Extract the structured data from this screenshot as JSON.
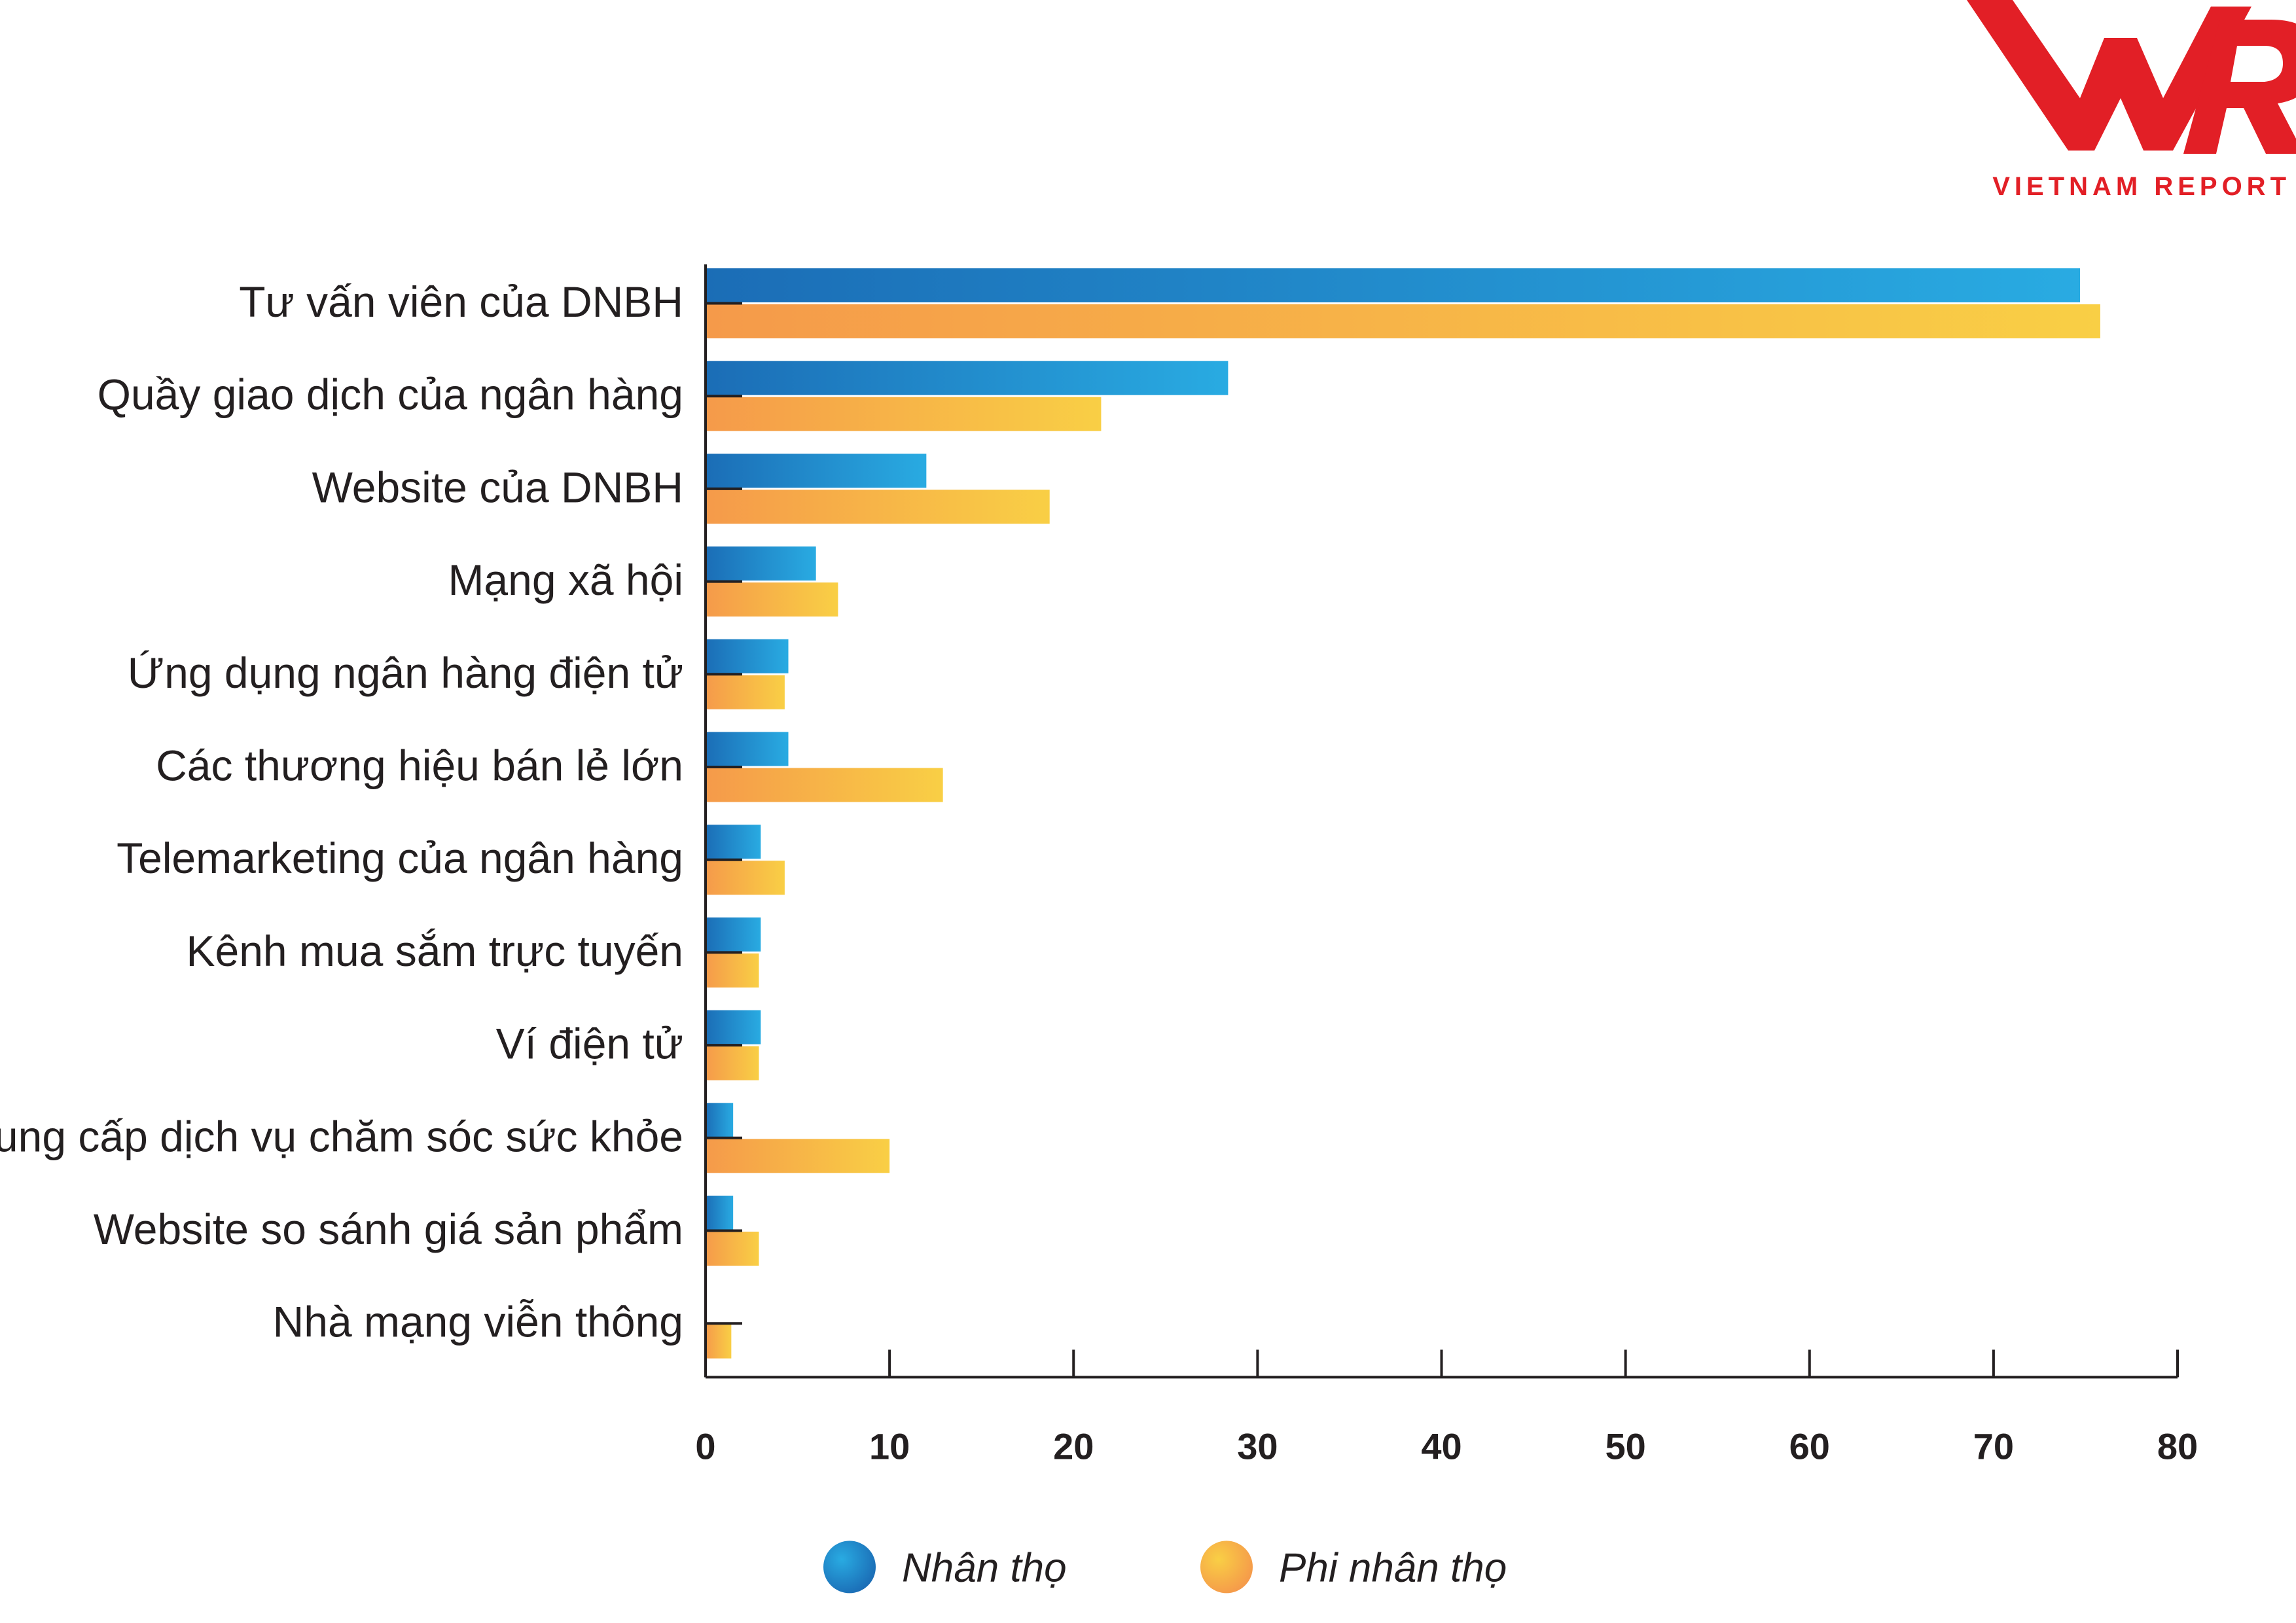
{
  "logo": {
    "mark": "VNR",
    "text": "VIETNAM REPORT",
    "color": "#e21f26"
  },
  "colors": {
    "nhan_tho_start": "#1b6db6",
    "nhan_tho_end": "#29abe2",
    "phi_nhan_tho_start": "#f59a4a",
    "phi_nhan_tho_end": "#f9cf45",
    "axis": "#231f20",
    "text": "#231f20"
  },
  "chart_data": {
    "type": "bar",
    "orientation": "horizontal",
    "categories": [
      "Tư vấn viên của DNBH",
      "Quầy giao dịch của ngân hàng",
      "Website của DNBH",
      "Mạng xã hội",
      "Ứng dụng ngân hàng điện tử",
      "Các thương hiệu bán lẻ lớn",
      "Telemarketing của ngân hàng",
      "Kênh mua sắm trực tuyến",
      "Ví điện tử",
      "Đơn vị cung cấp dịch vụ chăm sóc sức khỏe",
      "Website so sánh giá sản phẩm",
      "Nhà mạng viễn thông"
    ],
    "series": [
      {
        "name": "Nhân thọ",
        "values": [
          74.7,
          28.4,
          12.0,
          6.0,
          4.5,
          4.5,
          3.0,
          3.0,
          3.0,
          1.5,
          1.5,
          0
        ]
      },
      {
        "name": "Phi nhân thọ",
        "values": [
          75.8,
          21.5,
          18.7,
          7.2,
          4.3,
          12.9,
          4.3,
          2.9,
          2.9,
          10.0,
          2.9,
          1.4
        ]
      }
    ],
    "xlim": [
      0,
      80
    ],
    "xticks": [
      "0",
      "10",
      "20",
      "30",
      "40",
      "50",
      "60",
      "70",
      "80"
    ],
    "grid": false,
    "legend_position": "bottom"
  }
}
